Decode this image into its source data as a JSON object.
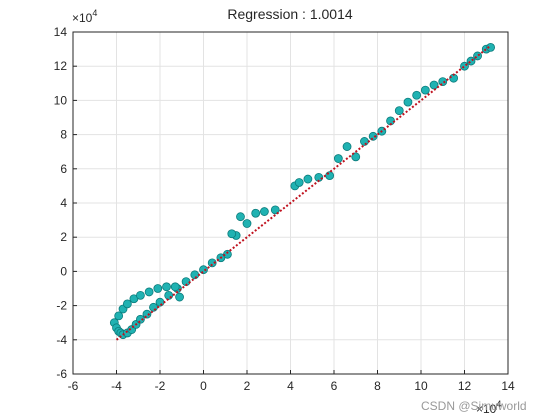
{
  "chart_data": {
    "type": "scatter",
    "title": "Regression :   1.0014",
    "x_exponent": {
      "base": "×10",
      "power": "4"
    },
    "y_exponent": {
      "base": "×10",
      "power": "4"
    },
    "watermark": "CSDN @Simuworld",
    "x": [
      -4.1,
      -4.0,
      -3.9,
      -3.8,
      -3.7,
      -3.5,
      -3.3,
      -3.1,
      -2.9,
      -2.6,
      -2.3,
      -2.0,
      -1.6,
      -1.2,
      -0.8,
      -0.4,
      0.0,
      0.4,
      0.8,
      -3.9,
      -3.7,
      -3.5,
      -3.2,
      -2.9,
      -2.5,
      -2.1,
      -1.7,
      -1.3,
      -1.1,
      1.1,
      1.5,
      1.3,
      1.7,
      2.0,
      2.4,
      2.8,
      3.3,
      4.2,
      4.4,
      4.8,
      5.3,
      5.8,
      6.2,
      6.6,
      7.0,
      7.4,
      7.8,
      8.2,
      8.6,
      9.0,
      9.4,
      9.8,
      10.2,
      10.6,
      11.0,
      11.5,
      12.0,
      12.3,
      12.6,
      13.0,
      13.2
    ],
    "values": [
      -3.0,
      -3.3,
      -3.5,
      -3.6,
      -3.7,
      -3.6,
      -3.4,
      -3.1,
      -2.8,
      -2.5,
      -2.1,
      -1.8,
      -1.4,
      -1.0,
      -0.6,
      -0.2,
      0.1,
      0.5,
      0.8,
      -2.6,
      -2.2,
      -1.9,
      -1.6,
      -1.4,
      -1.2,
      -1.0,
      -0.9,
      -0.9,
      -1.5,
      1.0,
      2.1,
      2.2,
      3.2,
      2.8,
      3.4,
      3.5,
      3.6,
      5.0,
      5.2,
      5.4,
      5.5,
      5.6,
      6.6,
      7.3,
      6.7,
      7.6,
      7.9,
      8.2,
      8.8,
      9.4,
      9.9,
      10.3,
      10.6,
      10.9,
      11.1,
      11.3,
      12.0,
      12.3,
      12.6,
      13.0,
      13.1
    ],
    "color": "#20b2b2",
    "edge_color": "#0b7b7b",
    "fit": {
      "x": [
        -4.0,
        13.2
      ],
      "y": [
        -4.0,
        13.2
      ],
      "color": "#c0121f"
    },
    "xlim": [
      -6,
      14
    ],
    "ylim": [
      -6,
      14
    ],
    "xticks": [
      -6,
      -4,
      -2,
      0,
      2,
      4,
      6,
      8,
      10,
      12,
      14
    ],
    "yticks": [
      -6,
      -4,
      -2,
      0,
      2,
      4,
      6,
      8,
      10,
      12,
      14
    ],
    "grid": true
  }
}
